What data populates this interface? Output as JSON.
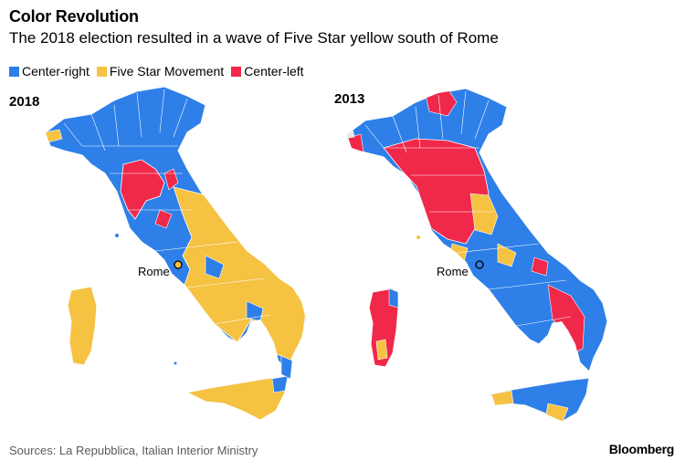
{
  "title": "Color Revolution",
  "subtitle": "The 2018 election resulted in a wave of Five Star yellow south of Rome",
  "legend": [
    {
      "label": "Center-right",
      "color": "#2e7fe8"
    },
    {
      "label": "Five Star Movement",
      "color": "#f5c242"
    },
    {
      "label": "Center-left",
      "color": "#f0284a"
    }
  ],
  "maps": [
    {
      "year": "2018",
      "city_label": "Rome"
    },
    {
      "year": "2013",
      "city_label": "Rome"
    }
  ],
  "source": "Sources: La Repubblica, Italian Interior Ministry",
  "brand": "Bloomberg",
  "colors": {
    "center_right": "#2e7fe8",
    "five_star": "#f5c242",
    "center_left": "#f0284a",
    "other": "#e6e6e6",
    "border": "#ffffff"
  }
}
